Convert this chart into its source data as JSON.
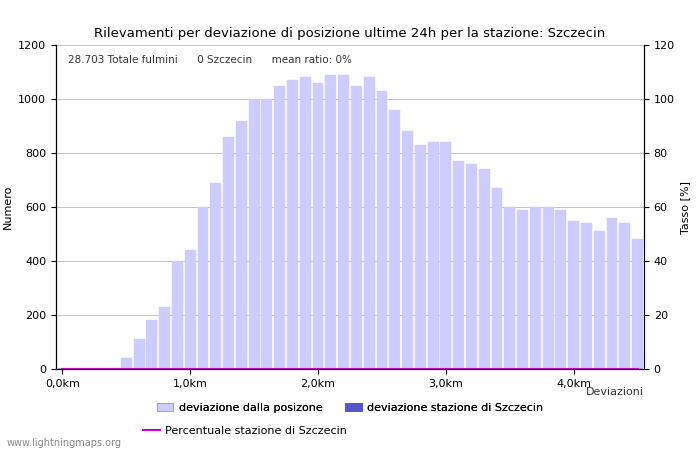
{
  "title": "Rilevamenti per deviazione di posizione ultime 24h per la stazione: Szczecin",
  "ylabel_left": "Numero",
  "ylabel_right": "Tasso [%]",
  "annotation": "28.703 Totale fulmini      0 Szczecin      mean ratio: 0%",
  "watermark": "www.lightningmaps.org",
  "xtick_labels": [
    "0,0km",
    "1,0km",
    "2,0km",
    "3,0km",
    "4,0km"
  ],
  "xtick_positions": [
    0,
    10,
    20,
    30,
    40
  ],
  "ylim_left": [
    0,
    1200
  ],
  "ylim_right": [
    0,
    120
  ],
  "yticks_left": [
    0,
    200,
    400,
    600,
    800,
    1000,
    1200
  ],
  "yticks_right": [
    0,
    20,
    40,
    60,
    80,
    100,
    120
  ],
  "bar_values": [
    5,
    3,
    4,
    3,
    3,
    40,
    110,
    180,
    230,
    400,
    440,
    600,
    690,
    860,
    920,
    1000,
    1000,
    1050,
    1070,
    1080,
    1060,
    1090,
    1090,
    1050,
    1080,
    1030,
    960,
    880,
    830,
    840,
    840,
    770,
    760,
    740,
    670,
    600,
    590,
    600,
    600,
    590,
    550,
    540,
    510,
    560,
    540,
    480
  ],
  "bar_color": "#ccccff",
  "bar_color_station": "#5555cc",
  "station_bar_values": [
    0,
    0,
    0,
    0,
    0,
    0,
    0,
    0,
    0,
    0,
    0,
    0,
    0,
    0,
    0,
    0,
    0,
    0,
    0,
    0,
    0,
    0,
    0,
    0,
    0,
    0,
    0,
    0,
    0,
    0,
    0,
    0,
    0,
    0,
    0,
    0,
    0,
    0,
    0,
    0,
    0,
    0,
    0,
    0,
    0,
    0
  ],
  "line_color": "#cc00cc",
  "line_values": [
    0,
    0,
    0,
    0,
    0,
    0,
    0,
    0,
    0,
    0,
    0,
    0,
    0,
    0,
    0,
    0,
    0,
    0,
    0,
    0,
    0,
    0,
    0,
    0,
    0,
    0,
    0,
    0,
    0,
    0,
    0,
    0,
    0,
    0,
    0,
    0,
    0,
    0,
    0,
    0,
    0,
    0,
    0,
    0,
    0,
    0
  ],
  "legend_label_bar": "deviazione dalla posizone",
  "legend_label_station": "deviazione stazione di Szczecin",
  "legend_label_line": "Percentuale stazione di Szczecin",
  "xlabel_right": "Deviazioni",
  "background_color": "#ffffff",
  "grid_color": "#aaaaaa",
  "num_bars": 46
}
